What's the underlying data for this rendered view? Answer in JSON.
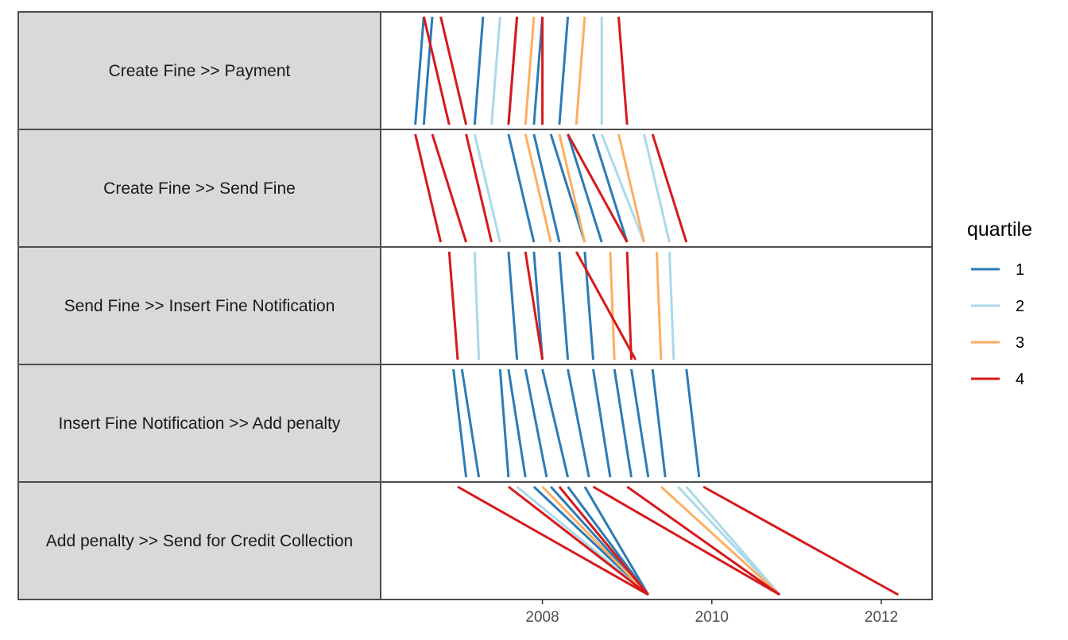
{
  "chart_data": {
    "type": "line",
    "subtype": "performance-spectrum",
    "title": "",
    "xlabel": "",
    "ylabel": "",
    "xlim": [
      2006.1,
      2012.6
    ],
    "x_ticks": [
      2008,
      2010,
      2012
    ],
    "grid": false,
    "legend": {
      "title": "quartile",
      "position": "right"
    },
    "colors": {
      "1": "#2c7bb6",
      "2": "#abd9e9",
      "3": "#fdae61",
      "4": "#d7191c"
    },
    "facets": [
      "Create Fine >> Payment",
      "Create Fine >> Send Fine",
      "Send Fine >> Insert Fine Notification",
      "Insert Fine Notification >> Add penalty",
      "Add penalty >> Send for Credit Collection"
    ],
    "series": [
      {
        "name": "1",
        "segments": [
          {
            "facet": 0,
            "start": 2006.6,
            "end": 2006.5
          },
          {
            "facet": 0,
            "start": 2006.7,
            "end": 2006.6
          },
          {
            "facet": 0,
            "start": 2007.3,
            "end": 2007.2
          },
          {
            "facet": 0,
            "start": 2007.7,
            "end": 2007.6
          },
          {
            "facet": 0,
            "start": 2008.0,
            "end": 2007.9
          },
          {
            "facet": 0,
            "start": 2008.3,
            "end": 2008.2
          },
          {
            "facet": 1,
            "start": 2007.6,
            "end": 2007.9
          },
          {
            "facet": 1,
            "start": 2007.9,
            "end": 2008.2
          },
          {
            "facet": 1,
            "start": 2008.1,
            "end": 2008.5
          },
          {
            "facet": 1,
            "start": 2008.3,
            "end": 2008.7
          },
          {
            "facet": 1,
            "start": 2008.6,
            "end": 2009.0
          },
          {
            "facet": 2,
            "start": 2007.6,
            "end": 2007.7
          },
          {
            "facet": 2,
            "start": 2007.9,
            "end": 2008.0
          },
          {
            "facet": 2,
            "start": 2008.2,
            "end": 2008.3
          },
          {
            "facet": 2,
            "start": 2008.5,
            "end": 2008.6
          },
          {
            "facet": 3,
            "start": 2006.95,
            "end": 2007.1
          },
          {
            "facet": 3,
            "start": 2007.05,
            "end": 2007.25
          },
          {
            "facet": 3,
            "start": 2007.5,
            "end": 2007.6
          },
          {
            "facet": 3,
            "start": 2007.6,
            "end": 2007.8
          },
          {
            "facet": 3,
            "start": 2007.8,
            "end": 2008.05
          },
          {
            "facet": 3,
            "start": 2008.0,
            "end": 2008.3
          },
          {
            "facet": 3,
            "start": 2008.3,
            "end": 2008.55
          },
          {
            "facet": 3,
            "start": 2008.6,
            "end": 2008.8
          },
          {
            "facet": 3,
            "start": 2008.85,
            "end": 2009.05
          },
          {
            "facet": 3,
            "start": 2009.05,
            "end": 2009.25
          },
          {
            "facet": 3,
            "start": 2009.3,
            "end": 2009.45
          },
          {
            "facet": 3,
            "start": 2009.7,
            "end": 2009.85
          },
          {
            "facet": 4,
            "start": 2007.9,
            "end": 2009.25
          },
          {
            "facet": 4,
            "start": 2008.1,
            "end": 2009.25
          },
          {
            "facet": 4,
            "start": 2008.3,
            "end": 2009.25
          },
          {
            "facet": 4,
            "start": 2008.5,
            "end": 2009.25
          }
        ]
      },
      {
        "name": "2",
        "segments": [
          {
            "facet": 0,
            "start": 2007.5,
            "end": 2007.4
          },
          {
            "facet": 0,
            "start": 2008.7,
            "end": 2008.7
          },
          {
            "facet": 1,
            "start": 2007.2,
            "end": 2007.5
          },
          {
            "facet": 1,
            "start": 2008.7,
            "end": 2009.2
          },
          {
            "facet": 1,
            "start": 2009.2,
            "end": 2009.5
          },
          {
            "facet": 2,
            "start": 2006.9,
            "end": 2007.0
          },
          {
            "facet": 2,
            "start": 2007.2,
            "end": 2007.25
          },
          {
            "facet": 2,
            "start": 2009.5,
            "end": 2009.55
          },
          {
            "facet": 4,
            "start": 2007.7,
            "end": 2009.25
          },
          {
            "facet": 4,
            "start": 2008.2,
            "end": 2009.25
          },
          {
            "facet": 4,
            "start": 2009.6,
            "end": 2010.8
          },
          {
            "facet": 4,
            "start": 2009.7,
            "end": 2010.8
          }
        ]
      },
      {
        "name": "3",
        "segments": [
          {
            "facet": 0,
            "start": 2007.9,
            "end": 2007.8
          },
          {
            "facet": 0,
            "start": 2008.5,
            "end": 2008.4
          },
          {
            "facet": 1,
            "start": 2007.8,
            "end": 2008.1
          },
          {
            "facet": 1,
            "start": 2008.2,
            "end": 2008.5
          },
          {
            "facet": 1,
            "start": 2008.9,
            "end": 2009.2
          },
          {
            "facet": 2,
            "start": 2008.8,
            "end": 2008.85
          },
          {
            "facet": 2,
            "start": 2009.35,
            "end": 2009.4
          },
          {
            "facet": 4,
            "start": 2008.0,
            "end": 2009.25
          },
          {
            "facet": 4,
            "start": 2009.4,
            "end": 2010.8
          }
        ]
      },
      {
        "name": "4",
        "segments": [
          {
            "facet": 0,
            "start": 2006.6,
            "end": 2006.9
          },
          {
            "facet": 0,
            "start": 2006.8,
            "end": 2007.1
          },
          {
            "facet": 0,
            "start": 2007.7,
            "end": 2007.6
          },
          {
            "facet": 0,
            "start": 2008.0,
            "end": 2008.0
          },
          {
            "facet": 0,
            "start": 2008.9,
            "end": 2009.0
          },
          {
            "facet": 1,
            "start": 2006.5,
            "end": 2006.8
          },
          {
            "facet": 1,
            "start": 2006.7,
            "end": 2007.1
          },
          {
            "facet": 1,
            "start": 2007.1,
            "end": 2007.4
          },
          {
            "facet": 1,
            "start": 2008.3,
            "end": 2009.0
          },
          {
            "facet": 1,
            "start": 2009.3,
            "end": 2009.7
          },
          {
            "facet": 2,
            "start": 2006.9,
            "end": 2007.0
          },
          {
            "facet": 2,
            "start": 2007.8,
            "end": 2008.0
          },
          {
            "facet": 2,
            "start": 2008.4,
            "end": 2009.1
          },
          {
            "facet": 2,
            "start": 2009.0,
            "end": 2009.05
          },
          {
            "facet": 4,
            "start": 2007.0,
            "end": 2009.25
          },
          {
            "facet": 4,
            "start": 2007.6,
            "end": 2009.25
          },
          {
            "facet": 4,
            "start": 2008.2,
            "end": 2009.25
          },
          {
            "facet": 4,
            "start": 2008.6,
            "end": 2010.8
          },
          {
            "facet": 4,
            "start": 2009.0,
            "end": 2010.8
          },
          {
            "facet": 4,
            "start": 2009.9,
            "end": 2012.2
          }
        ]
      }
    ]
  }
}
